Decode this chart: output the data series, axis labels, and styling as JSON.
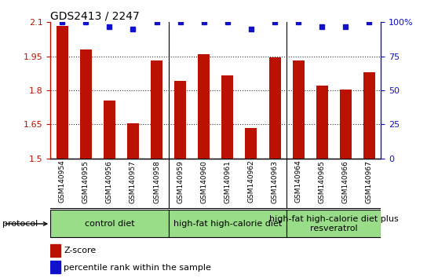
{
  "title": "GDS2413 / 2247",
  "samples": [
    "GSM140954",
    "GSM140955",
    "GSM140956",
    "GSM140957",
    "GSM140958",
    "GSM140959",
    "GSM140960",
    "GSM140961",
    "GSM140962",
    "GSM140963",
    "GSM140964",
    "GSM140965",
    "GSM140966",
    "GSM140967"
  ],
  "zscore": [
    2.085,
    1.98,
    1.755,
    1.655,
    1.93,
    1.84,
    1.96,
    1.865,
    1.635,
    1.945,
    1.93,
    1.82,
    1.805,
    1.88
  ],
  "percentile": [
    100,
    100,
    97,
    95,
    100,
    100,
    100,
    100,
    95,
    100,
    100,
    97,
    97,
    100
  ],
  "ylim": [
    1.5,
    2.1
  ],
  "yticks": [
    1.5,
    1.65,
    1.8,
    1.95,
    2.1
  ],
  "right_yticks": [
    0,
    25,
    50,
    75,
    100
  ],
  "right_ytick_labels": [
    "0",
    "25",
    "50",
    "75",
    "100%"
  ],
  "bar_color": "#bb1100",
  "dot_color": "#1111cc",
  "grid_color": "#333333",
  "protocol_groups": [
    {
      "label": "control diet",
      "start": 0,
      "end": 5
    },
    {
      "label": "high-fat high-calorie diet",
      "start": 5,
      "end": 10
    },
    {
      "label": "high-fat high-calorie diet plus\nresveratrol",
      "start": 10,
      "end": 14
    }
  ],
  "protocol_bg": "#99dd88",
  "gray_bg": "#cccccc",
  "xlabel_fontsize": 6.5,
  "title_fontsize": 10,
  "legend_fontsize": 8,
  "protocol_fontsize": 8,
  "ytick_fontsize": 8,
  "bar_width": 0.5
}
